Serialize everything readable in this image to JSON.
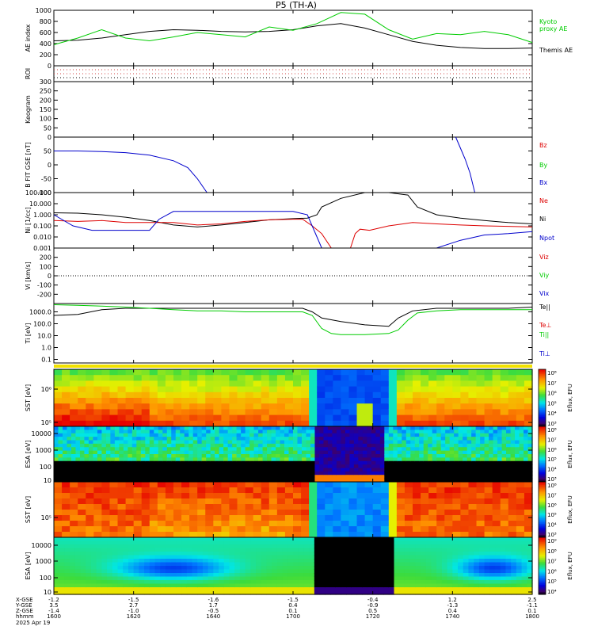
{
  "chart_data": {
    "type": "line",
    "title": "P5 (TH-A)",
    "x_ticks": [
      "1600",
      "1620",
      "1640",
      "1700",
      "1720",
      "1740",
      "1800"
    ],
    "footer": {
      "rows": [
        {
          "label": "X-GSE",
          "values": [
            "-1.2",
            "-1.5",
            "-1.6",
            "-1.5",
            "-0.4",
            "1.2",
            "2.5"
          ]
        },
        {
          "label": "Y-GSE",
          "values": [
            "3.5",
            "2.7",
            "1.7",
            "0.4",
            "-0.9",
            "-1.3",
            "-1.1"
          ]
        },
        {
          "label": "Z-GSE",
          "values": [
            "-1.4",
            "-1.0",
            "-0.5",
            "0.1",
            "0.5",
            "0.4",
            "0.1"
          ]
        }
      ],
      "time_label": "hhmm",
      "date": "2025 Apr 19"
    },
    "panels": [
      {
        "id": "ae",
        "ylabel": "AE index",
        "y_ticks": [
          "1000",
          "800",
          "600",
          "400",
          "200",
          "0"
        ],
        "legend": [
          {
            "name": "Kyoto proxy AE",
            "lines": [
              "Kyoto",
              "proxy AE"
            ],
            "color": "#00cc00"
          },
          {
            "name": "Themis AE",
            "lines": [
              "Themis AE"
            ],
            "color": "#000000"
          }
        ],
        "series": [
          {
            "name": "Themis AE",
            "color": "#000000",
            "x": [
              0,
              0.05,
              0.1,
              0.15,
              0.2,
              0.25,
              0.3,
              0.35,
              0.4,
              0.45,
              0.5,
              0.55,
              0.6,
              0.65,
              0.7,
              0.75,
              0.8,
              0.85,
              0.9,
              0.95,
              1.0
            ],
            "y": [
              450,
              460,
              500,
              560,
              620,
              650,
              640,
              620,
              610,
              620,
              650,
              720,
              760,
              680,
              560,
              440,
              370,
              330,
              310,
              310,
              320
            ]
          },
          {
            "name": "Kyoto proxy AE",
            "color": "#00cc00",
            "x": [
              0,
              0.05,
              0.1,
              0.15,
              0.2,
              0.25,
              0.3,
              0.35,
              0.4,
              0.45,
              0.5,
              0.55,
              0.6,
              0.65,
              0.7,
              0.75,
              0.8,
              0.85,
              0.9,
              0.95,
              1.0
            ],
            "y": [
              380,
              500,
              650,
              500,
              450,
              520,
              600,
              560,
              520,
              700,
              640,
              760,
              960,
              930,
              650,
              480,
              580,
              560,
              620,
              560,
              420
            ]
          }
        ]
      },
      {
        "id": "roi",
        "ylabel": "ROI",
        "y_ticks": []
      },
      {
        "id": "kp",
        "ylabel": "Keogram",
        "y_ticks": [
          "300",
          "250",
          "200",
          "150",
          "100",
          "50",
          "0"
        ]
      },
      {
        "id": "bfit",
        "ylabel": "B FIT GSE [nT]",
        "y_ticks": [
          "50",
          "0",
          "-50",
          "-100"
        ],
        "legend": [
          {
            "name": "Bz",
            "color": "#dd0000"
          },
          {
            "name": "By",
            "color": "#00cc00"
          },
          {
            "name": "Bx",
            "color": "#0000cc"
          }
        ],
        "series": [
          {
            "name": "Bx",
            "color": "#0000cc",
            "x": [
              0,
              0.05,
              0.1,
              0.15,
              0.2,
              0.25,
              0.28,
              0.3,
              0.32
            ],
            "y": [
              50,
              50,
              48,
              44,
              35,
              15,
              -10,
              -50,
              -100
            ]
          },
          {
            "name": "Bx",
            "color": "#0000cc",
            "x": [
              0.84,
              0.85,
              0.86,
              0.87,
              0.88
            ],
            "y": [
              100,
              60,
              20,
              -30,
              -100
            ]
          }
        ]
      },
      {
        "id": "ni",
        "ylabel": "Ni [1/cc]",
        "y_ticks": [
          "100.000",
          "10.000",
          "1.000",
          "0.100",
          "0.010",
          "0.001"
        ],
        "legend": [
          {
            "name": "Ne",
            "color": "#dd0000"
          },
          {
            "name": "Ni",
            "color": "#000000"
          },
          {
            "name": "Npot",
            "color": "#0000cc"
          }
        ],
        "series": [
          {
            "name": "Ni",
            "color": "#000000",
            "x": [
              0,
              0.05,
              0.1,
              0.15,
              0.2,
              0.25,
              0.3,
              0.35,
              0.4,
              0.45,
              0.5,
              0.53,
              0.55,
              0.56,
              0.6,
              0.65,
              0.7,
              0.74,
              0.76,
              0.8,
              0.85,
              0.9,
              0.95,
              1.0
            ],
            "y": [
              1.5,
              1.4,
              1.0,
              0.6,
              0.3,
              0.12,
              0.08,
              0.12,
              0.2,
              0.35,
              0.45,
              0.5,
              1.0,
              5,
              30,
              100,
              100,
              60,
              5,
              1.0,
              0.5,
              0.3,
              0.2,
              0.15
            ]
          },
          {
            "name": "Ne",
            "color": "#dd0000",
            "x": [
              0,
              0.05,
              0.1,
              0.15,
              0.2,
              0.25,
              0.3,
              0.35,
              0.4,
              0.45,
              0.5,
              0.52,
              0.54,
              0.56,
              0.58,
              0.62,
              0.63,
              0.64,
              0.66,
              0.7,
              0.75,
              0.8,
              0.85,
              0.9,
              0.95,
              1.0
            ],
            "y": [
              0.3,
              0.25,
              0.3,
              0.2,
              0.2,
              0.2,
              0.12,
              0.15,
              0.25,
              0.35,
              0.4,
              0.4,
              0.1,
              0.02,
              0.001,
              0.001,
              0.02,
              0.05,
              0.04,
              0.1,
              0.2,
              0.15,
              0.12,
              0.1,
              0.09,
              0.08
            ]
          },
          {
            "name": "Npot",
            "color": "#0000cc",
            "x": [
              0,
              0.04,
              0.08,
              0.15,
              0.2,
              0.22,
              0.25,
              0.5,
              0.53,
              0.55,
              0.56,
              0.78,
              0.8,
              0.85,
              0.9,
              0.95,
              1.0
            ],
            "y": [
              1.0,
              0.1,
              0.04,
              0.04,
              0.04,
              0.4,
              2.0,
              2.0,
              1.0,
              0.01,
              0.001,
              0.001,
              0.001,
              0.005,
              0.015,
              0.02,
              0.03
            ]
          }
        ]
      },
      {
        "id": "vi",
        "ylabel": "Vi [km/s]",
        "y_ticks": [
          "200",
          "100",
          "0",
          "-100",
          "-200"
        ],
        "legend": [
          {
            "name": "Viz",
            "color": "#dd0000"
          },
          {
            "name": "Viy",
            "color": "#00cc00"
          },
          {
            "name": "Vix",
            "color": "#0000cc"
          }
        ]
      },
      {
        "id": "ti",
        "ylabel": "Ti [eV]",
        "y_ticks": [
          "1000.0",
          "100.0",
          "10.0",
          "1.0",
          "0.1"
        ],
        "legend": [
          {
            "name": "Te||",
            "color": "#000000"
          },
          {
            "name": "Te⊥",
            "color": "#dd0000"
          },
          {
            "name": "Ti||",
            "color": "#00cc00"
          },
          {
            "name": "Ti⊥",
            "color": "#0000cc"
          }
        ],
        "series": [
          {
            "name": "Te||",
            "color": "#000000",
            "x": [
              0,
              0.05,
              0.1,
              0.15,
              0.2,
              0.25,
              0.3,
              0.35,
              0.4,
              0.45,
              0.5,
              0.52,
              0.54,
              0.56,
              0.6,
              0.65,
              0.7,
              0.72,
              0.75,
              0.8,
              0.85,
              0.9,
              0.95,
              1.0
            ],
            "y": [
              500,
              600,
              1500,
              2000,
              2000,
              2000,
              2000,
              2000,
              2000,
              2000,
              2000,
              2000,
              1000,
              300,
              150,
              80,
              60,
              300,
              1200,
              2000,
              2000,
              2000,
              2000,
              2500
            ]
          },
          {
            "name": "Ti||",
            "color": "#00cc00",
            "x": [
              0,
              0.05,
              0.1,
              0.15,
              0.2,
              0.25,
              0.3,
              0.35,
              0.4,
              0.45,
              0.5,
              0.52,
              0.54,
              0.56,
              0.58,
              0.6,
              0.65,
              0.7,
              0.72,
              0.74,
              0.76,
              0.8,
              0.85,
              0.9,
              0.95,
              1.0
            ],
            "y": [
              4000,
              3500,
              3000,
              2500,
              2000,
              1500,
              1200,
              1200,
              1000,
              1000,
              1000,
              1000,
              500,
              40,
              15,
              12,
              12,
              15,
              30,
              200,
              800,
              1200,
              1500,
              1500,
              1500,
              1500
            ]
          }
        ]
      },
      {
        "id": "sst_ion",
        "ylabel": "SST [eV]",
        "y_ticks": [
          "10⁶",
          "10⁵"
        ],
        "colorbar": {
          "label": "Eflux, EFU",
          "ticks": [
            "10⁸",
            "10⁷",
            "10⁶",
            "10⁵",
            "10⁴",
            "10³"
          ]
        }
      },
      {
        "id": "esa_ion",
        "ylabel": "ESA [eV]",
        "y_ticks": [
          "10000",
          "1000",
          "100",
          "10"
        ],
        "colorbar": {
          "label": "Eflux, EFU",
          "ticks": [
            "10⁸",
            "10⁷",
            "10⁶",
            "10⁵",
            "10⁴",
            "10³"
          ]
        }
      },
      {
        "id": "sst_elec",
        "ylabel": "SST [eV]",
        "y_ticks": [
          "10⁵"
        ],
        "colorbar": {
          "label": "Eflux, EFU",
          "ticks": [
            "10⁸",
            "10⁷",
            "10⁶",
            "10⁵",
            "10⁴",
            "10³"
          ]
        }
      },
      {
        "id": "esa_elec",
        "ylabel": "ESA [eV]",
        "y_ticks": [
          "10000",
          "1000",
          "100",
          "10"
        ],
        "colorbar": {
          "label": "Eflux, EFU",
          "ticks": [
            "10⁹",
            "10⁸",
            "10⁷",
            "10⁶",
            "10⁵",
            "10⁴"
          ]
        }
      }
    ]
  }
}
